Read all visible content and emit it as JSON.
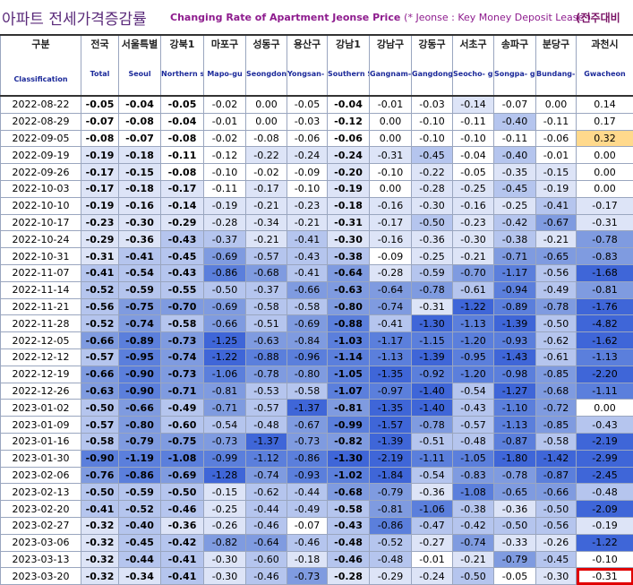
{
  "title": {
    "korean": "아파트 전세가격증감률",
    "english": "Changing Rate of Apartment Jeonse Price",
    "note": "(* Jeonse : Key Money Deposit Lease )",
    "right": "(전주대비"
  },
  "headers": [
    {
      "ko": "구분",
      "en": "Classification"
    },
    {
      "ko": "전국",
      "en": "Total"
    },
    {
      "ko": "서울특별",
      "en": "Seoul"
    },
    {
      "ko": "강북1",
      "en": "Northern seoul"
    },
    {
      "ko": "마포구",
      "en": "Mapo-gu"
    },
    {
      "ko": "성동구",
      "en": "Seongdon g-gu"
    },
    {
      "ko": "용산구",
      "en": "Yongsan- gu"
    },
    {
      "ko": "강남1",
      "en": "Southern Seoul"
    },
    {
      "ko": "강남구",
      "en": "Gangnam- gu"
    },
    {
      "ko": "강동구",
      "en": "Gangdong -gu"
    },
    {
      "ko": "서초구",
      "en": "Seocho- gu"
    },
    {
      "ko": "송파구",
      "en": "Songpa- gu"
    },
    {
      "ko": "분당구",
      "en": "Bundang- gu"
    },
    {
      "ko": "과천시",
      "en": "Gwacheon"
    }
  ],
  "colors": {
    "white": "#ffffff",
    "pale": "#dde4f7",
    "light": "#b5c5ee",
    "medium": "#7f9be0",
    "strong": "#5b7fdc",
    "deep": "#3f66d8",
    "positive": "#ffd98c",
    "highlight_border": "#e00000"
  },
  "chart_data": {
    "type": "table",
    "title": "아파트 전세가격증감률 Changing Rate of Apartment Jeonse Price",
    "columns": [
      "구분",
      "전국",
      "서울특별",
      "강북1",
      "마포구",
      "성동구",
      "용산구",
      "강남1",
      "강남구",
      "강동구",
      "서초구",
      "송파구",
      "분당구",
      "과천시"
    ],
    "rows": [
      [
        "2022-08-22",
        "-0.05",
        "-0.04",
        "-0.05",
        "-0.02",
        "0.00",
        "-0.05",
        "-0.04",
        "-0.01",
        "-0.03",
        "-0.14",
        "-0.07",
        "0.00",
        "0.14"
      ],
      [
        "2022-08-29",
        "-0.07",
        "-0.08",
        "-0.04",
        "-0.01",
        "0.00",
        "-0.03",
        "-0.12",
        "0.00",
        "-0.10",
        "-0.11",
        "-0.40",
        "-0.11",
        "0.17"
      ],
      [
        "2022-09-05",
        "-0.08",
        "-0.07",
        "-0.08",
        "-0.02",
        "-0.08",
        "-0.06",
        "-0.06",
        "0.00",
        "-0.10",
        "-0.10",
        "-0.11",
        "-0.06",
        "0.32"
      ],
      [
        "2022-09-19",
        "-0.19",
        "-0.18",
        "-0.11",
        "-0.12",
        "-0.22",
        "-0.24",
        "-0.24",
        "-0.31",
        "-0.45",
        "-0.04",
        "-0.40",
        "-0.01",
        "0.00"
      ],
      [
        "2022-09-26",
        "-0.17",
        "-0.15",
        "-0.08",
        "-0.10",
        "-0.02",
        "-0.09",
        "-0.20",
        "-0.10",
        "-0.22",
        "-0.05",
        "-0.35",
        "-0.15",
        "0.00"
      ],
      [
        "2022-10-03",
        "-0.17",
        "-0.18",
        "-0.17",
        "-0.11",
        "-0.17",
        "-0.10",
        "-0.19",
        "0.00",
        "-0.28",
        "-0.25",
        "-0.45",
        "-0.19",
        "0.00"
      ],
      [
        "2022-10-10",
        "-0.19",
        "-0.16",
        "-0.14",
        "-0.19",
        "-0.21",
        "-0.23",
        "-0.18",
        "-0.16",
        "-0.30",
        "-0.16",
        "-0.25",
        "-0.41",
        "-0.17"
      ],
      [
        "2022-10-17",
        "-0.23",
        "-0.30",
        "-0.29",
        "-0.28",
        "-0.34",
        "-0.21",
        "-0.31",
        "-0.17",
        "-0.50",
        "-0.23",
        "-0.42",
        "-0.67",
        "-0.31"
      ],
      [
        "2022-10-24",
        "-0.29",
        "-0.36",
        "-0.43",
        "-0.37",
        "-0.21",
        "-0.41",
        "-0.30",
        "-0.16",
        "-0.36",
        "-0.30",
        "-0.38",
        "-0.21",
        "-0.78"
      ],
      [
        "2022-10-31",
        "-0.31",
        "-0.41",
        "-0.45",
        "-0.69",
        "-0.57",
        "-0.43",
        "-0.38",
        "-0.09",
        "-0.25",
        "-0.21",
        "-0.71",
        "-0.65",
        "-0.83"
      ],
      [
        "2022-11-07",
        "-0.41",
        "-0.54",
        "-0.43",
        "-0.86",
        "-0.68",
        "-0.41",
        "-0.64",
        "-0.28",
        "-0.59",
        "-0.70",
        "-1.17",
        "-0.56",
        "-1.68"
      ],
      [
        "2022-11-14",
        "-0.52",
        "-0.59",
        "-0.55",
        "-0.50",
        "-0.37",
        "-0.66",
        "-0.63",
        "-0.64",
        "-0.78",
        "-0.61",
        "-0.94",
        "-0.49",
        "-0.81"
      ],
      [
        "2022-11-21",
        "-0.56",
        "-0.75",
        "-0.70",
        "-0.69",
        "-0.58",
        "-0.58",
        "-0.80",
        "-0.74",
        "-0.31",
        "-1.22",
        "-0.89",
        "-0.78",
        "-1.76"
      ],
      [
        "2022-11-28",
        "-0.52",
        "-0.74",
        "-0.58",
        "-0.66",
        "-0.51",
        "-0.69",
        "-0.88",
        "-0.41",
        "-1.30",
        "-1.13",
        "-1.39",
        "-0.50",
        "-4.82"
      ],
      [
        "2022-12-05",
        "-0.66",
        "-0.89",
        "-0.73",
        "-1.25",
        "-0.63",
        "-0.84",
        "-1.03",
        "-1.17",
        "-1.15",
        "-1.20",
        "-0.93",
        "-0.62",
        "-1.62"
      ],
      [
        "2022-12-12",
        "-0.57",
        "-0.95",
        "-0.74",
        "-1.22",
        "-0.88",
        "-0.96",
        "-1.14",
        "-1.13",
        "-1.39",
        "-0.95",
        "-1.43",
        "-0.61",
        "-1.13"
      ],
      [
        "2022-12-19",
        "-0.66",
        "-0.90",
        "-0.73",
        "-1.06",
        "-0.78",
        "-0.80",
        "-1.05",
        "-1.35",
        "-0.92",
        "-1.20",
        "-0.98",
        "-0.85",
        "-2.20"
      ],
      [
        "2022-12-26",
        "-0.63",
        "-0.90",
        "-0.71",
        "-0.81",
        "-0.53",
        "-0.58",
        "-1.07",
        "-0.97",
        "-1.40",
        "-0.54",
        "-1.27",
        "-0.68",
        "-1.11"
      ],
      [
        "2023-01-02",
        "-0.50",
        "-0.66",
        "-0.49",
        "-0.71",
        "-0.57",
        "-1.37",
        "-0.81",
        "-1.35",
        "-1.40",
        "-0.43",
        "-1.10",
        "-0.72",
        "0.00"
      ],
      [
        "2023-01-09",
        "-0.57",
        "-0.80",
        "-0.60",
        "-0.54",
        "-0.48",
        "-0.67",
        "-0.99",
        "-1.57",
        "-0.78",
        "-0.57",
        "-1.13",
        "-0.85",
        "-0.43"
      ],
      [
        "2023-01-16",
        "-0.58",
        "-0.79",
        "-0.75",
        "-0.73",
        "-1.37",
        "-0.73",
        "-0.82",
        "-1.39",
        "-0.51",
        "-0.48",
        "-0.87",
        "-0.58",
        "-2.19"
      ],
      [
        "2023-01-30",
        "-0.90",
        "-1.19",
        "-1.08",
        "-0.99",
        "-1.12",
        "-0.86",
        "-1.30",
        "-2.19",
        "-1.11",
        "-1.05",
        "-1.80",
        "-1.42",
        "-2.99"
      ],
      [
        "2023-02-06",
        "-0.76",
        "-0.86",
        "-0.69",
        "-1.28",
        "-0.74",
        "-0.93",
        "-1.02",
        "-1.84",
        "-0.54",
        "-0.83",
        "-0.78",
        "-0.87",
        "-2.45"
      ],
      [
        "2023-02-13",
        "-0.50",
        "-0.59",
        "-0.50",
        "-0.15",
        "-0.62",
        "-0.44",
        "-0.68",
        "-0.79",
        "-0.36",
        "-1.08",
        "-0.65",
        "-0.66",
        "-0.48"
      ],
      [
        "2023-02-20",
        "-0.41",
        "-0.52",
        "-0.46",
        "-0.25",
        "-0.44",
        "-0.49",
        "-0.58",
        "-0.81",
        "-1.06",
        "-0.38",
        "-0.36",
        "-0.50",
        "-2.09"
      ],
      [
        "2023-02-27",
        "-0.32",
        "-0.40",
        "-0.36",
        "-0.26",
        "-0.46",
        "-0.07",
        "-0.43",
        "-0.86",
        "-0.47",
        "-0.42",
        "-0.50",
        "-0.56",
        "-0.19"
      ],
      [
        "2023-03-06",
        "-0.32",
        "-0.45",
        "-0.42",
        "-0.82",
        "-0.64",
        "-0.46",
        "-0.48",
        "-0.52",
        "-0.27",
        "-0.74",
        "-0.33",
        "-0.26",
        "-1.22"
      ],
      [
        "2023-03-13",
        "-0.32",
        "-0.44",
        "-0.41",
        "-0.30",
        "-0.60",
        "-0.18",
        "-0.46",
        "-0.48",
        "-0.01",
        "-0.21",
        "-0.79",
        "-0.45",
        "-0.10"
      ],
      [
        "2023-03-20",
        "-0.32",
        "-0.34",
        "-0.41",
        "-0.30",
        "-0.46",
        "-0.73",
        "-0.28",
        "-0.29",
        "-0.24",
        "-0.50",
        "-0.05",
        "-0.30",
        "-0.31"
      ]
    ],
    "bold_columns": [
      1,
      2,
      3,
      7
    ],
    "highlighted_cell": {
      "row": 28,
      "col": 13
    }
  }
}
